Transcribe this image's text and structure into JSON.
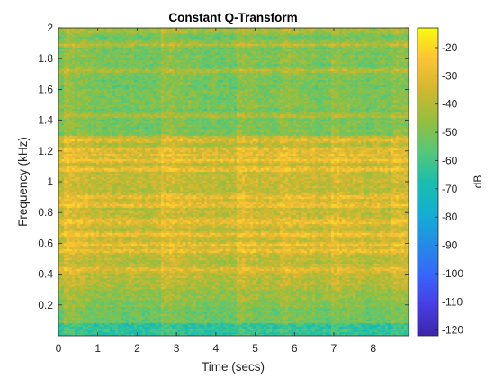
{
  "chart_data": {
    "type": "heatmap",
    "title": "Constant Q-Transform",
    "xlabel": "Time (secs)",
    "ylabel": "Frequency (kHz)",
    "xlim": [
      0,
      8.9
    ],
    "ylim": [
      0,
      2
    ],
    "x_ticks": [
      0,
      1,
      2,
      3,
      4,
      5,
      6,
      7,
      8
    ],
    "y_ticks": [
      0.2,
      0.4,
      0.6,
      0.8,
      1,
      1.2,
      1.4,
      1.6,
      1.8,
      2
    ],
    "x_tick_labels": [
      "0",
      "1",
      "2",
      "3",
      "4",
      "5",
      "6",
      "7",
      "8"
    ],
    "y_tick_labels": [
      "0.2",
      "0.4",
      "0.6",
      "0.8",
      "1",
      "1.2",
      "1.4",
      "1.6",
      "1.8",
      "2"
    ],
    "colorbar": {
      "label": "dB",
      "lim": [
        -122,
        -13
      ],
      "ticks": [
        -20,
        -30,
        -40,
        -50,
        -60,
        -70,
        -80,
        -90,
        -100,
        -110,
        -120
      ],
      "tick_labels": [
        "-20",
        "-30",
        "-40",
        "-50",
        "-60",
        "-70",
        "-80",
        "-90",
        "-100",
        "-110",
        "-120"
      ],
      "colormap": "parula"
    },
    "grid": false,
    "harmonic_bands_khz": [
      0.43,
      0.55,
      0.59,
      0.66,
      0.74,
      0.85,
      0.9,
      1.08,
      1.14,
      1.18,
      1.21,
      1.27,
      1.43,
      1.72,
      1.89,
      1.98
    ],
    "note_onsets_secs": [
      0.2,
      2.65,
      4.6,
      5.65,
      6.95,
      8.45
    ],
    "approx_level_db": {
      "below_0.3_khz": -58,
      "0.3_to_1.3_khz": -38,
      "1.3_to_2_khz": -52,
      "peak": -20
    }
  }
}
